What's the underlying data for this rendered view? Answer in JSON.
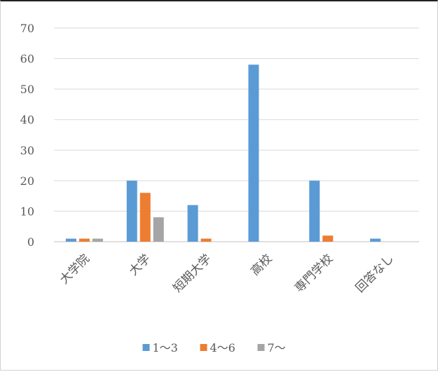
{
  "chart_data": {
    "type": "bar",
    "categories": [
      "大学院",
      "大学",
      "短期大学",
      "高校",
      "専門学校",
      "回答なし"
    ],
    "series": [
      {
        "name": "1〜3",
        "color": "#5B9BD5",
        "values": [
          1,
          20,
          12,
          58,
          20,
          1
        ]
      },
      {
        "name": "4〜6",
        "color": "#ED7D31",
        "values": [
          1,
          16,
          1,
          0,
          2,
          0
        ]
      },
      {
        "name": "7〜",
        "color": "#A5A5A5",
        "values": [
          1,
          8,
          0,
          0,
          0,
          0
        ]
      }
    ],
    "y_ticks": [
      "0",
      "10",
      "20",
      "30",
      "40",
      "50",
      "60",
      "70"
    ],
    "ylim": [
      0,
      70
    ],
    "grid": true,
    "legend_position": "bottom",
    "title": "",
    "xlabel": "",
    "ylabel": ""
  }
}
